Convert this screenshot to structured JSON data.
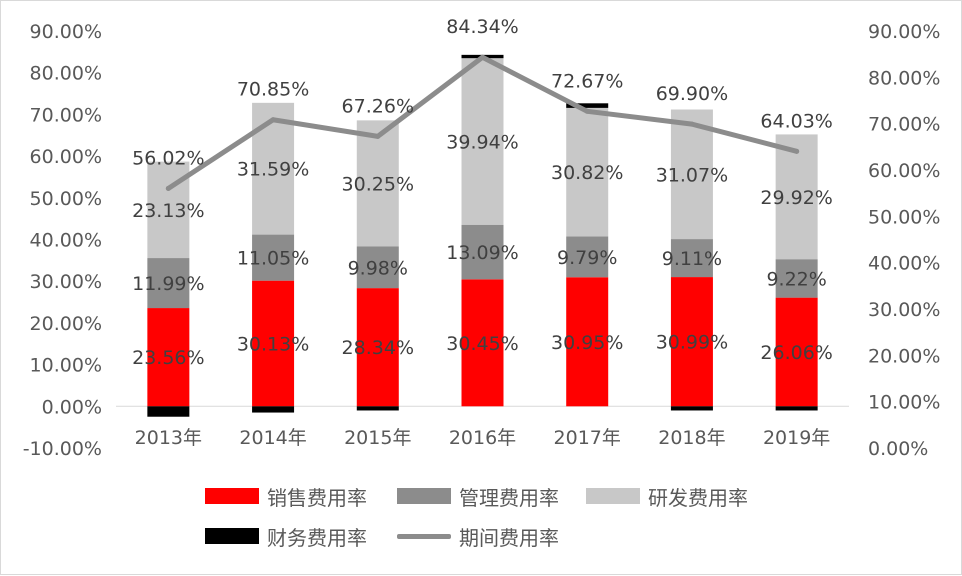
{
  "chart_data": {
    "type": "bar",
    "categories": [
      "2013年",
      "2014年",
      "2015年",
      "2016年",
      "2017年",
      "2018年",
      "2019年"
    ],
    "series": [
      {
        "name": "销售费用率",
        "kind": "stacked-bar",
        "color": "#ff0000",
        "values": [
          23.56,
          30.13,
          28.34,
          30.45,
          30.95,
          30.99,
          26.06
        ],
        "labels": [
          "23.56%",
          "30.13%",
          "28.34%",
          "30.45%",
          "30.95%",
          "30.99%",
          "26.06%"
        ]
      },
      {
        "name": "管理费用率",
        "kind": "stacked-bar",
        "color": "#8c8c8c",
        "values": [
          11.99,
          11.05,
          9.98,
          13.09,
          9.79,
          9.11,
          9.22
        ],
        "labels": [
          "11.99%",
          "11.05%",
          "9.98%",
          "13.09%",
          "9.79%",
          "9.11%",
          "9.22%"
        ]
      },
      {
        "name": "研发费用率",
        "kind": "stacked-bar",
        "color": "#c8c8c8",
        "values": [
          23.13,
          31.59,
          30.25,
          39.94,
          30.82,
          31.07,
          29.92
        ],
        "labels": [
          "23.13%",
          "31.59%",
          "30.25%",
          "39.94%",
          "30.82%",
          "31.07%",
          "29.92%"
        ]
      },
      {
        "name": "财务费用率",
        "kind": "stacked-bar",
        "color": "#000000",
        "values": [
          -2.5,
          -1.5,
          -1.0,
          0.8,
          1.1,
          -1.0,
          -1.0
        ]
      },
      {
        "name": "期间费用率",
        "kind": "line",
        "axis": "secondary",
        "color": "#8c8c8c",
        "values": [
          56.02,
          70.85,
          67.26,
          84.34,
          72.67,
          69.9,
          64.03
        ],
        "labels": [
          "56.02%",
          "70.85%",
          "67.26%",
          "84.34%",
          "72.67%",
          "69.90%",
          "64.03%"
        ]
      }
    ],
    "y_axis": {
      "min": -10,
      "max": 90,
      "step": 10,
      "tick_labels": [
        "-10.00%",
        "0.00%",
        "10.00%",
        "20.00%",
        "30.00%",
        "40.00%",
        "50.00%",
        "60.00%",
        "70.00%",
        "80.00%",
        "90.00%"
      ]
    },
    "y2_axis": {
      "min": 0,
      "max": 90,
      "step": 10,
      "tick_labels": [
        "0.00%",
        "10.00%",
        "20.00%",
        "30.00%",
        "40.00%",
        "50.00%",
        "60.00%",
        "70.00%",
        "80.00%",
        "90.00%"
      ]
    },
    "stacked": true,
    "grid": false,
    "legend_position": "bottom"
  },
  "legend": {
    "row1": [
      "销售费用率",
      "管理费用率",
      "研发费用率"
    ],
    "row2": [
      "财务费用率",
      "期间费用率"
    ]
  }
}
